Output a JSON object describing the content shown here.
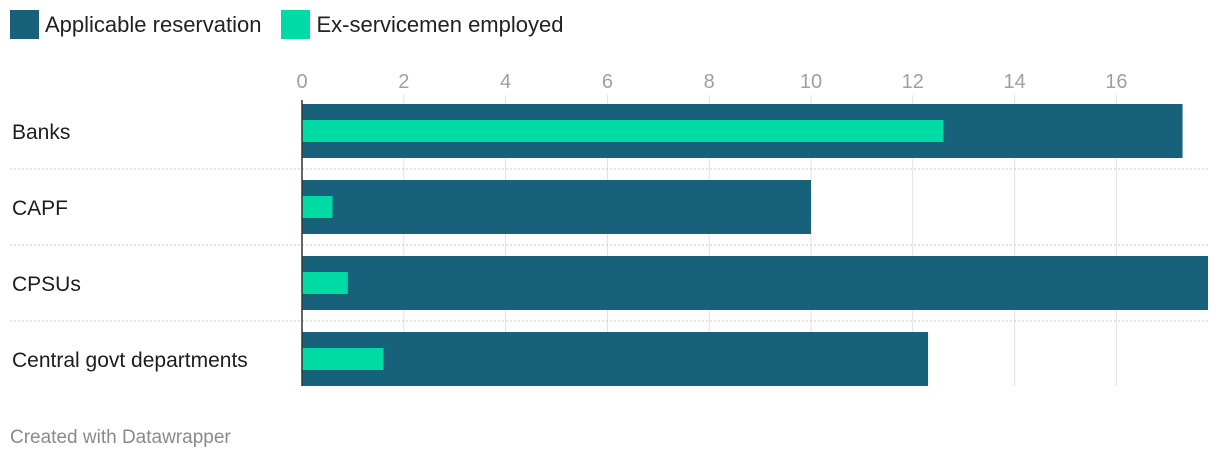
{
  "footer": {
    "credit": "Created with Datawrapper"
  },
  "colors": {
    "applicable_reservation": "#17617b",
    "ex_servicemen_employed": "#00dba5",
    "grid": "#e0e0e0",
    "separator": "#c8c8c8",
    "tick_label": "#a0a0a0"
  },
  "chart_data": {
    "type": "bar",
    "orientation": "horizontal",
    "categories": [
      "Banks",
      "CAPF",
      "CPSUs",
      "Central govt departments"
    ],
    "series": [
      {
        "name": "Applicable reservation",
        "values": [
          17.3,
          10.0,
          17.8,
          12.3
        ]
      },
      {
        "name": "Ex-servicemen employed",
        "values": [
          12.6,
          0.6,
          0.9,
          1.6
        ]
      }
    ],
    "xticks": [
      "0",
      "2",
      "4",
      "6",
      "8",
      "10",
      "12",
      "14",
      "16"
    ],
    "xlim": [
      0,
      17.8
    ],
    "grid": true,
    "legend": "top-left"
  }
}
